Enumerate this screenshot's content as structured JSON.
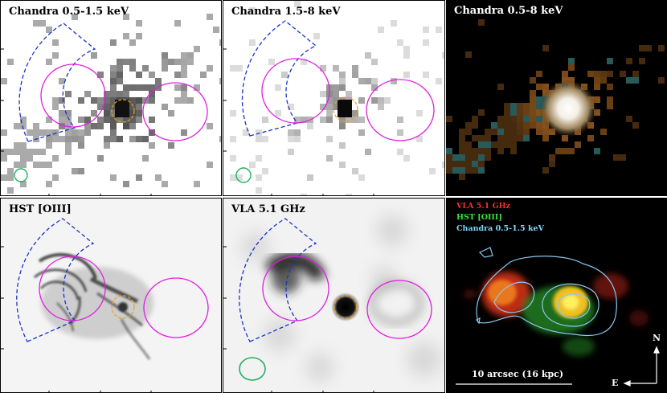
{
  "panels": {
    "p1": {
      "title": "Chandra 0.5-1.5 keV"
    },
    "p2": {
      "title": "Chandra 1.5-8 keV"
    },
    "p3": {
      "title": "Chandra 0.5-8 keV"
    },
    "p4": {
      "title": "HST [OIII]"
    },
    "p5": {
      "title": "VLA 5.1 GHz"
    },
    "p6": {
      "legend": [
        {
          "text": "VLA 5.1 GHz",
          "color": "#ff2a2a"
        },
        {
          "text": "HST [OIII]",
          "color": "#39e639"
        },
        {
          "text": "Chandra 0.5-1.5 keV",
          "color": "#7fd8ff"
        }
      ],
      "scalebar_label": "10 arcsec (16 kpc)",
      "compass": {
        "north": "N",
        "east": "E"
      }
    }
  },
  "colors": {
    "wedge": "#1a33cc",
    "lobe_ellipse": "#e01ee0",
    "nucleus_circle": "#e8a01a",
    "psf_circle": "#22b060",
    "contour": "#88c8ee"
  }
}
